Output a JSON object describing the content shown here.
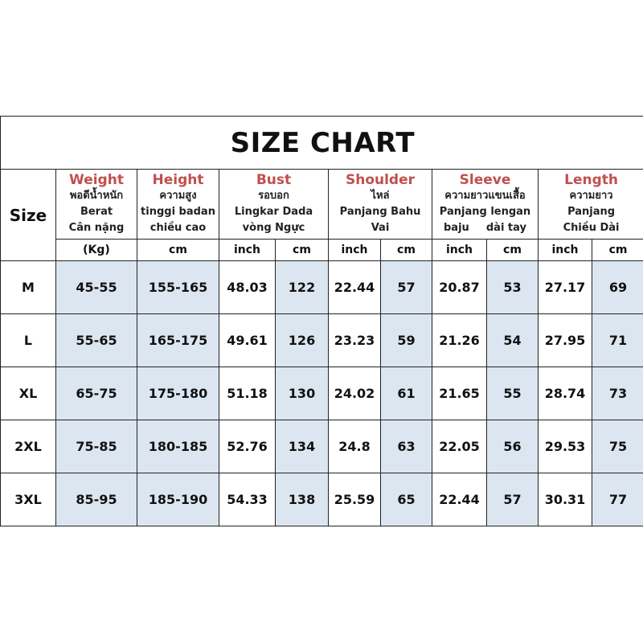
{
  "title": "SIZE CHART",
  "size_header": "Size",
  "columns": [
    {
      "name": "Weight",
      "lines": [
        "พอดีน้ำหนัก",
        "Berat",
        "Cân nặng"
      ]
    },
    {
      "name": "Height",
      "lines": [
        "ความสูง",
        "tinggi badan",
        "chiều cao"
      ]
    },
    {
      "name": "Bust",
      "lines": [
        "รอบอก",
        "Lingkar Dada",
        "vòng Ngực"
      ]
    },
    {
      "name": "Shoulder",
      "lines": [
        "ไหล่",
        "Panjang Bahu",
        "Vai"
      ]
    },
    {
      "name": "Sleeve",
      "lines": [
        "ความยาวแขนเสื้อ",
        "Panjang lengan",
        "baju",
        "dài tay"
      ]
    },
    {
      "name": "Length",
      "lines": [
        "ความยาว",
        "Panjang",
        "Chiều Dài"
      ]
    }
  ],
  "units": [
    "(Kg)",
    "cm",
    "inch",
    "cm",
    "inch",
    "cm",
    "inch",
    "cm",
    "inch",
    "cm"
  ],
  "rows": [
    [
      "M",
      "45-55",
      "155-165",
      "48.03",
      "122",
      "22.44",
      "57",
      "20.87",
      "53",
      "27.17",
      "69"
    ],
    [
      "L",
      "55-65",
      "165-175",
      "49.61",
      "126",
      "23.23",
      "59",
      "21.26",
      "54",
      "27.95",
      "71"
    ],
    [
      "XL",
      "65-75",
      "175-180",
      "51.18",
      "130",
      "24.02",
      "61",
      "21.65",
      "55",
      "28.74",
      "73"
    ],
    [
      "2XL",
      "75-85",
      "180-185",
      "52.76",
      "134",
      "24.8",
      "63",
      "22.05",
      "56",
      "29.53",
      "75"
    ],
    [
      "3XL",
      "85-95",
      "185-190",
      "54.33",
      "138",
      "25.59",
      "65",
      "22.44",
      "57",
      "30.31",
      "77"
    ]
  ],
  "colors": {
    "header_accent": "#c0504d",
    "shaded_cell": "#dce6f1"
  }
}
